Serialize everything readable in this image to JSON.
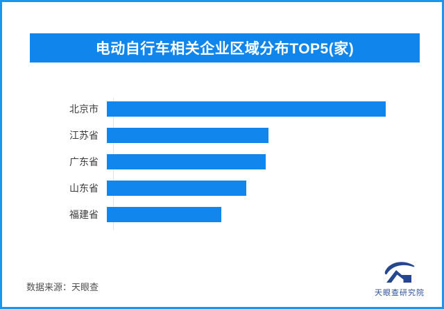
{
  "page": {
    "background": "#ffffff",
    "border_color": "#1c95ef"
  },
  "title": {
    "text": "电动自行车相关企业区域分布TOP5(家)",
    "bg": "#1086ec",
    "color": "#ffffff"
  },
  "source": {
    "label": "数据来源：天眼查"
  },
  "brand": {
    "name": "天眼查研究院",
    "color": "#2c4f9c"
  },
  "chart_data": {
    "type": "bar",
    "orientation": "horizontal",
    "title": "电动自行车相关企业区域分布TOP5(家)",
    "categories": [
      "北京市",
      "江苏省",
      "广东省",
      "山东省",
      "福建省"
    ],
    "values_relative_pct": [
      100,
      58,
      57,
      50,
      41
    ],
    "bar_color": "#1186ec",
    "xlabel": "",
    "ylabel": "",
    "value_labels_shown": false,
    "axis_ticks_shown": false,
    "grid": false,
    "legend": false,
    "note": "No numeric axis or data labels shown; values are bar lengths relative to the longest bar (北京市 = 100)."
  }
}
